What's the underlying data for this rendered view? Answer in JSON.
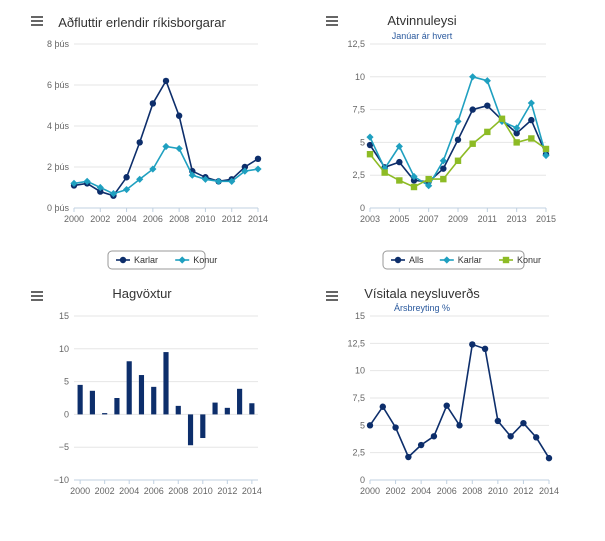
{
  "colors": {
    "navy": "#0d2e6b",
    "teal": "#1fa0c0",
    "green": "#8dbb25",
    "grid": "#e6e6e6",
    "axis": "#c0d0e0",
    "menu": "#666666"
  },
  "chart_data": [
    {
      "type": "line",
      "title": "Aðfluttir erlendir ríkisborgarar",
      "subtitle": "",
      "x": [
        2000,
        2001,
        2002,
        2003,
        2004,
        2005,
        2006,
        2007,
        2008,
        2009,
        2010,
        2011,
        2012,
        2013,
        2014
      ],
      "x_tick_labels": [
        "2000",
        "2002",
        "2004",
        "2006",
        "2008",
        "2010",
        "2012",
        "2014"
      ],
      "y_tick_labels": [
        "0 þús",
        "2 þús",
        "4 þús",
        "6 þús",
        "8 þús"
      ],
      "ylim": [
        0,
        8
      ],
      "grid": true,
      "legend_position": "bottom-center",
      "series": [
        {
          "name": "Karlar",
          "color": "#0d2e6b",
          "marker": "circle",
          "values": [
            1.1,
            1.2,
            0.8,
            0.6,
            1.5,
            3.2,
            5.1,
            6.2,
            4.5,
            1.8,
            1.5,
            1.3,
            1.4,
            2.0,
            2.4
          ]
        },
        {
          "name": "Konur",
          "color": "#1fa0c0",
          "marker": "diamond",
          "values": [
            1.2,
            1.3,
            1.0,
            0.7,
            0.9,
            1.4,
            1.9,
            3.0,
            2.9,
            1.6,
            1.4,
            1.3,
            1.3,
            1.8,
            1.9
          ]
        }
      ]
    },
    {
      "type": "line",
      "title": "Atvinnuleysi",
      "subtitle": "Janúar ár hvert",
      "x": [
        2003,
        2004,
        2005,
        2006,
        2007,
        2008,
        2009,
        2010,
        2011,
        2012,
        2013,
        2014,
        2015
      ],
      "x_tick_labels": [
        "2003",
        "2005",
        "2007",
        "2009",
        "2011",
        "2013",
        "2015"
      ],
      "y_tick_labels": [
        "0",
        "2,5",
        "5",
        "7,5",
        "10",
        "12,5"
      ],
      "ylim": [
        0,
        12.5
      ],
      "grid": true,
      "legend_position": "bottom-center",
      "series": [
        {
          "name": "Alls",
          "color": "#0d2e6b",
          "marker": "circle",
          "values": [
            4.8,
            3.1,
            3.5,
            2.1,
            2.0,
            3.0,
            5.2,
            7.5,
            7.8,
            6.7,
            5.7,
            6.7,
            4.1
          ]
        },
        {
          "name": "Karlar",
          "color": "#1fa0c0",
          "marker": "diamond",
          "values": [
            5.4,
            3.0,
            4.7,
            2.4,
            1.7,
            3.6,
            6.6,
            10.0,
            9.7,
            6.6,
            6.1,
            8.0,
            4.0
          ]
        },
        {
          "name": "Konur",
          "color": "#8dbb25",
          "marker": "square",
          "values": [
            4.1,
            2.7,
            2.1,
            1.6,
            2.2,
            2.2,
            3.6,
            4.9,
            5.8,
            6.8,
            5.0,
            5.3,
            4.5
          ]
        }
      ]
    },
    {
      "type": "bar",
      "title": "Hagvöxtur",
      "subtitle": "",
      "categories": [
        2000,
        2001,
        2002,
        2003,
        2004,
        2005,
        2006,
        2007,
        2008,
        2009,
        2010,
        2011,
        2012,
        2013,
        2014
      ],
      "x_tick_labels": [
        "2000",
        "2002",
        "2004",
        "2006",
        "2008",
        "2010",
        "2012",
        "2014"
      ],
      "y_tick_labels": [
        "−10",
        "−5",
        "0",
        "5",
        "10",
        "15"
      ],
      "ylim": [
        -10,
        15
      ],
      "grid": true,
      "series": [
        {
          "name": "",
          "color": "#0d2e6b",
          "values": [
            4.5,
            3.6,
            0.2,
            2.5,
            8.1,
            6.0,
            4.2,
            9.5,
            1.3,
            -4.7,
            -3.6,
            1.8,
            1.0,
            3.9,
            1.7
          ]
        }
      ]
    },
    {
      "type": "line",
      "title": "Vísitala neysluverðs",
      "subtitle": "Ársbreyting %",
      "x": [
        2000,
        2001,
        2002,
        2003,
        2004,
        2005,
        2006,
        2007,
        2008,
        2009,
        2010,
        2011,
        2012,
        2013,
        2014
      ],
      "x_tick_labels": [
        "2000",
        "2002",
        "2004",
        "2006",
        "2008",
        "2010",
        "2012",
        "2014"
      ],
      "y_tick_labels": [
        "0",
        "2,5",
        "5",
        "7,5",
        "10",
        "12,5",
        "15"
      ],
      "ylim": [
        0,
        15
      ],
      "grid": true,
      "series": [
        {
          "name": "",
          "color": "#0d2e6b",
          "marker": "circle",
          "values": [
            5.0,
            6.7,
            4.8,
            2.1,
            3.2,
            4.0,
            6.8,
            5.0,
            12.4,
            12.0,
            5.4,
            4.0,
            5.2,
            3.9,
            2.0
          ]
        }
      ]
    }
  ]
}
